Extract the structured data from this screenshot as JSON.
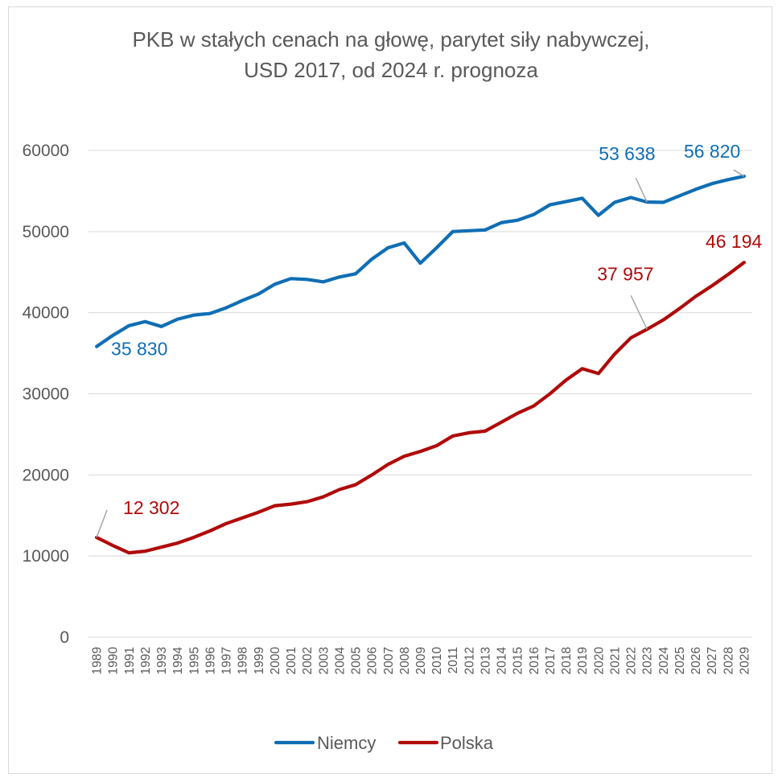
{
  "chart_data": {
    "type": "line",
    "title": [
      "PKB w stałych cenach na głowę, parytet siły nabywczej,",
      "USD 2017, od 2024 r. prognoza"
    ],
    "xlabel": "",
    "ylabel": "",
    "ylim": [
      0,
      60000
    ],
    "yticks": [
      "0",
      "10000",
      "20000",
      "30000",
      "40000",
      "50000",
      "60000"
    ],
    "grid": true,
    "legend_position": "bottom",
    "categories": [
      "1989",
      "1990",
      "1991",
      "1992",
      "1993",
      "1994",
      "1995",
      "1996",
      "1997",
      "1998",
      "1999",
      "2000",
      "2001",
      "2002",
      "2003",
      "2004",
      "2005",
      "2006",
      "2007",
      "2008",
      "2009",
      "2010",
      "2011",
      "2012",
      "2013",
      "2014",
      "2015",
      "2016",
      "2017",
      "2018",
      "2019",
      "2020",
      "2021",
      "2022",
      "2023",
      "2024",
      "2025",
      "2026",
      "2027",
      "2028",
      "2029"
    ],
    "series": [
      {
        "name": "Niemcy",
        "color": "#0F6EB4",
        "values": [
          35830,
          37200,
          38400,
          38900,
          38300,
          39200,
          39700,
          39900,
          40600,
          41500,
          42300,
          43500,
          44200,
          44100,
          43800,
          44400,
          44800,
          46600,
          48000,
          48600,
          46100,
          48000,
          50000,
          50100,
          50200,
          51100,
          51400,
          52100,
          53300,
          53700,
          54100,
          52000,
          53600,
          54200,
          53638,
          53600,
          54400,
          55200,
          55900,
          56400,
          56820
        ]
      },
      {
        "name": "Polska",
        "color": "#B00A0A",
        "values": [
          12302,
          11300,
          10400,
          10600,
          11100,
          11600,
          12300,
          13100,
          14000,
          14700,
          15400,
          16200,
          16400,
          16700,
          17300,
          18200,
          18800,
          20000,
          21300,
          22300,
          22900,
          23600,
          24800,
          25200,
          25400,
          26500,
          27600,
          28500,
          30000,
          31700,
          33100,
          32500,
          34900,
          36900,
          37957,
          39100,
          40500,
          42000,
          43300,
          44700,
          46194
        ]
      }
    ],
    "data_labels": [
      {
        "series": "Niemcy",
        "category": "1989",
        "text": "35 830"
      },
      {
        "series": "Niemcy",
        "category": "2023",
        "text": "53 638"
      },
      {
        "series": "Niemcy",
        "category": "2029",
        "text": "56 820"
      },
      {
        "series": "Polska",
        "category": "1989",
        "text": "12 302"
      },
      {
        "series": "Polska",
        "category": "2023",
        "text": "37 957"
      },
      {
        "series": "Polska",
        "category": "2029",
        "text": "46 194"
      }
    ]
  }
}
